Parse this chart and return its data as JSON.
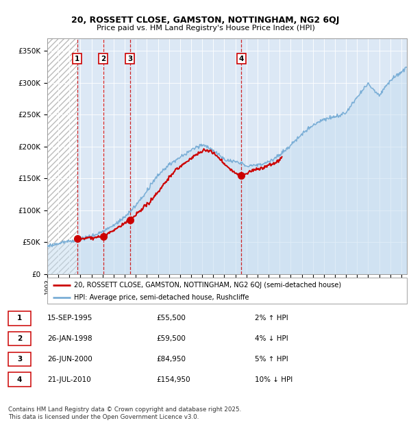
{
  "title1": "20, ROSSETT CLOSE, GAMSTON, NOTTINGHAM, NG2 6QJ",
  "title2": "Price paid vs. HM Land Registry's House Price Index (HPI)",
  "ylim": [
    0,
    370000
  ],
  "yticks": [
    0,
    50000,
    100000,
    150000,
    200000,
    250000,
    300000,
    350000
  ],
  "ytick_labels": [
    "£0",
    "£50K",
    "£100K",
    "£150K",
    "£200K",
    "£250K",
    "£300K",
    "£350K"
  ],
  "legend_line1": "20, ROSSETT CLOSE, GAMSTON, NOTTINGHAM, NG2 6QJ (semi-detached house)",
  "legend_line2": "HPI: Average price, semi-detached house, Rushcliffe",
  "footer": "Contains HM Land Registry data © Crown copyright and database right 2025.\nThis data is licensed under the Open Government Licence v3.0.",
  "sale_color": "#cc0000",
  "hpi_color": "#7aaed6",
  "sale_points": [
    {
      "date": 1995.71,
      "price": 55500,
      "label": "1"
    },
    {
      "date": 1998.07,
      "price": 59500,
      "label": "2"
    },
    {
      "date": 2000.48,
      "price": 84950,
      "label": "3"
    },
    {
      "date": 2010.55,
      "price": 154950,
      "label": "4"
    }
  ],
  "table_data": [
    [
      "1",
      "15-SEP-1995",
      "£55,500",
      "2% ↑ HPI"
    ],
    [
      "2",
      "26-JAN-1998",
      "£59,500",
      "4% ↓ HPI"
    ],
    [
      "3",
      "26-JUN-2000",
      "£84,950",
      "5% ↑ HPI"
    ],
    [
      "4",
      "21-JUL-2010",
      "£154,950",
      "10% ↓ HPI"
    ]
  ],
  "vline_color": "#cc0000",
  "xlim_start": 1993.0,
  "xlim_end": 2025.5,
  "hpi_key_years": [
    1993,
    1994,
    1995,
    1996,
    1997,
    1998,
    1999,
    2000,
    2001,
    2002,
    2003,
    2004,
    2005,
    2006,
    2007,
    2008,
    2009,
    2010,
    2011,
    2012,
    2013,
    2014,
    2015,
    2016,
    2017,
    2018,
    2019,
    2020,
    2021,
    2022,
    2023,
    2024,
    2025.5
  ],
  "hpi_key_vals": [
    44000,
    47000,
    51000,
    56000,
    60000,
    67000,
    76000,
    90000,
    108000,
    130000,
    155000,
    172000,
    183000,
    195000,
    205000,
    196000,
    182000,
    178000,
    172000,
    172000,
    178000,
    188000,
    202000,
    220000,
    235000,
    244000,
    248000,
    254000,
    278000,
    300000,
    282000,
    305000,
    325000
  ],
  "sale_key_years": [
    1995.71,
    1996.5,
    1997.0,
    1998.07,
    1999.0,
    2000.0,
    2000.48,
    2001.5,
    2002.5,
    2003.5,
    2004.5,
    2005.5,
    2006.5,
    2007.2,
    2007.8,
    2008.5,
    2009.3,
    2010.0,
    2010.55,
    2011.5,
    2012.5,
    2013.5,
    2014.2
  ],
  "sale_key_vals": [
    55500,
    56500,
    57500,
    59500,
    68000,
    80000,
    84950,
    100000,
    118000,
    140000,
    162000,
    175000,
    188000,
    195000,
    193000,
    182000,
    168000,
    158000,
    154950,
    162000,
    167000,
    174000,
    182000
  ]
}
